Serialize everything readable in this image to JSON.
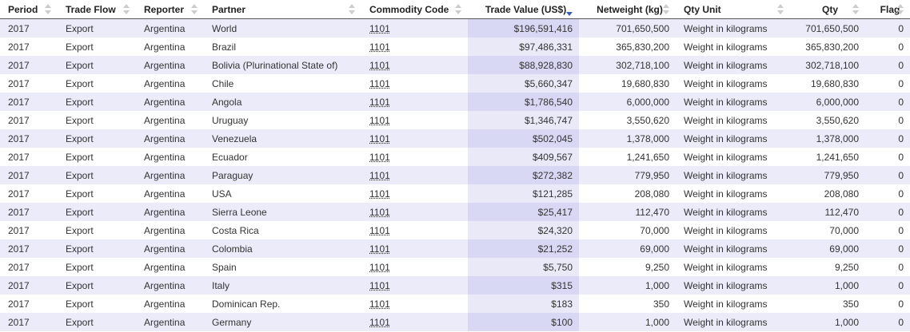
{
  "table": {
    "headers": [
      "Period",
      "Trade Flow",
      "Reporter",
      "Partner",
      "Commodity Code",
      "Trade Value (US$)",
      "Netweight (kg)",
      "Qty Unit",
      "Qty",
      "Flag"
    ],
    "rows": [
      [
        "2017",
        "Export",
        "Argentina",
        "World",
        "1101",
        "$196,591,416",
        "701,650,500",
        "Weight in kilograms",
        "701,650,500",
        "0"
      ],
      [
        "2017",
        "Export",
        "Argentina",
        "Brazil",
        "1101",
        "$97,486,331",
        "365,830,200",
        "Weight in kilograms",
        "365,830,200",
        "0"
      ],
      [
        "2017",
        "Export",
        "Argentina",
        "Bolivia (Plurinational State of)",
        "1101",
        "$88,928,830",
        "302,718,100",
        "Weight in kilograms",
        "302,718,100",
        "0"
      ],
      [
        "2017",
        "Export",
        "Argentina",
        "Chile",
        "1101",
        "$5,660,347",
        "19,680,830",
        "Weight in kilograms",
        "19,680,830",
        "0"
      ],
      [
        "2017",
        "Export",
        "Argentina",
        "Angola",
        "1101",
        "$1,786,540",
        "6,000,000",
        "Weight in kilograms",
        "6,000,000",
        "0"
      ],
      [
        "2017",
        "Export",
        "Argentina",
        "Uruguay",
        "1101",
        "$1,346,747",
        "3,550,620",
        "Weight in kilograms",
        "3,550,620",
        "0"
      ],
      [
        "2017",
        "Export",
        "Argentina",
        "Venezuela",
        "1101",
        "$502,045",
        "1,378,000",
        "Weight in kilograms",
        "1,378,000",
        "0"
      ],
      [
        "2017",
        "Export",
        "Argentina",
        "Ecuador",
        "1101",
        "$409,567",
        "1,241,650",
        "Weight in kilograms",
        "1,241,650",
        "0"
      ],
      [
        "2017",
        "Export",
        "Argentina",
        "Paraguay",
        "1101",
        "$272,382",
        "779,950",
        "Weight in kilograms",
        "779,950",
        "0"
      ],
      [
        "2017",
        "Export",
        "Argentina",
        "USA",
        "1101",
        "$121,285",
        "208,080",
        "Weight in kilograms",
        "208,080",
        "0"
      ],
      [
        "2017",
        "Export",
        "Argentina",
        "Sierra Leone",
        "1101",
        "$25,417",
        "112,470",
        "Weight in kilograms",
        "112,470",
        "0"
      ],
      [
        "2017",
        "Export",
        "Argentina",
        "Costa Rica",
        "1101",
        "$24,320",
        "70,000",
        "Weight in kilograms",
        "70,000",
        "0"
      ],
      [
        "2017",
        "Export",
        "Argentina",
        "Colombia",
        "1101",
        "$21,252",
        "69,000",
        "Weight in kilograms",
        "69,000",
        "0"
      ],
      [
        "2017",
        "Export",
        "Argentina",
        "Spain",
        "1101",
        "$5,750",
        "9,250",
        "Weight in kilograms",
        "9,250",
        "0"
      ],
      [
        "2017",
        "Export",
        "Argentina",
        "Italy",
        "1101",
        "$315",
        "1,000",
        "Weight in kilograms",
        "1,000",
        "0"
      ],
      [
        "2017",
        "Export",
        "Argentina",
        "Dominican Rep.",
        "1101",
        "$183",
        "350",
        "Weight in kilograms",
        "350",
        "0"
      ],
      [
        "2017",
        "Export",
        "Argentina",
        "Germany",
        "1101",
        "$100",
        "1,000",
        "Weight in kilograms",
        "1,000",
        "0"
      ]
    ]
  }
}
